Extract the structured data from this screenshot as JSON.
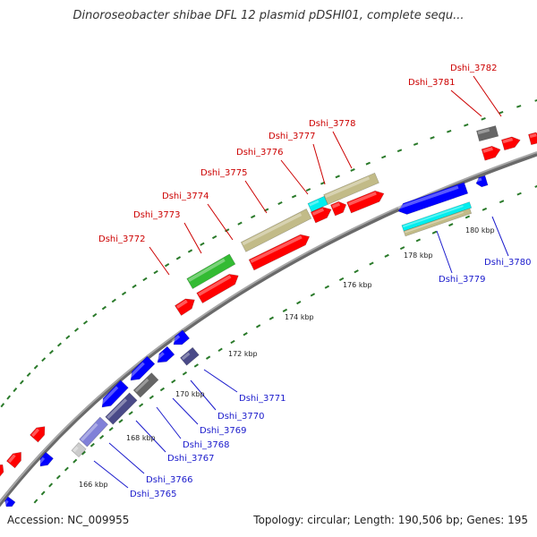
{
  "title": "Dinoroseobacter shibae DFL 12 plasmid pDSHI01, complete sequ...",
  "footer": {
    "accession": "Accession: NC_009955",
    "summary": "Topology: circular; Length: 190,506 bp; Genes: 195"
  },
  "colors": {
    "forward_cds": "#ff0000",
    "reverse_cds": "#0000ff",
    "forward_label": "#cc0000",
    "reverse_label": "#1a1acc",
    "backbone": "#8a8a8a",
    "tick_dot": "#2a7a2a",
    "gene_green": "#33bb33",
    "gene_khaki": "#c2bb88",
    "gene_cyan": "#00eeee",
    "gene_gray": "#666666",
    "gene_slate": "#4a4a88"
  },
  "tick_labels": [
    "166 kbp",
    "168 kbp",
    "170 kbp",
    "172 kbp",
    "174 kbp",
    "176 kbp",
    "178 kbp",
    "180 kbp"
  ],
  "forward_labels": [
    "Dshi_3772",
    "Dshi_3773",
    "Dshi_3774",
    "Dshi_3775",
    "Dshi_3776",
    "Dshi_3777",
    "Dshi_3778",
    "Dshi_3781",
    "Dshi_3782"
  ],
  "reverse_labels": [
    "Dshi_3765",
    "Dshi_3766",
    "Dshi_3767",
    "Dshi_3768",
    "Dshi_3769",
    "Dshi_3770",
    "Dshi_3771",
    "Dshi_3779",
    "Dshi_3780"
  ]
}
